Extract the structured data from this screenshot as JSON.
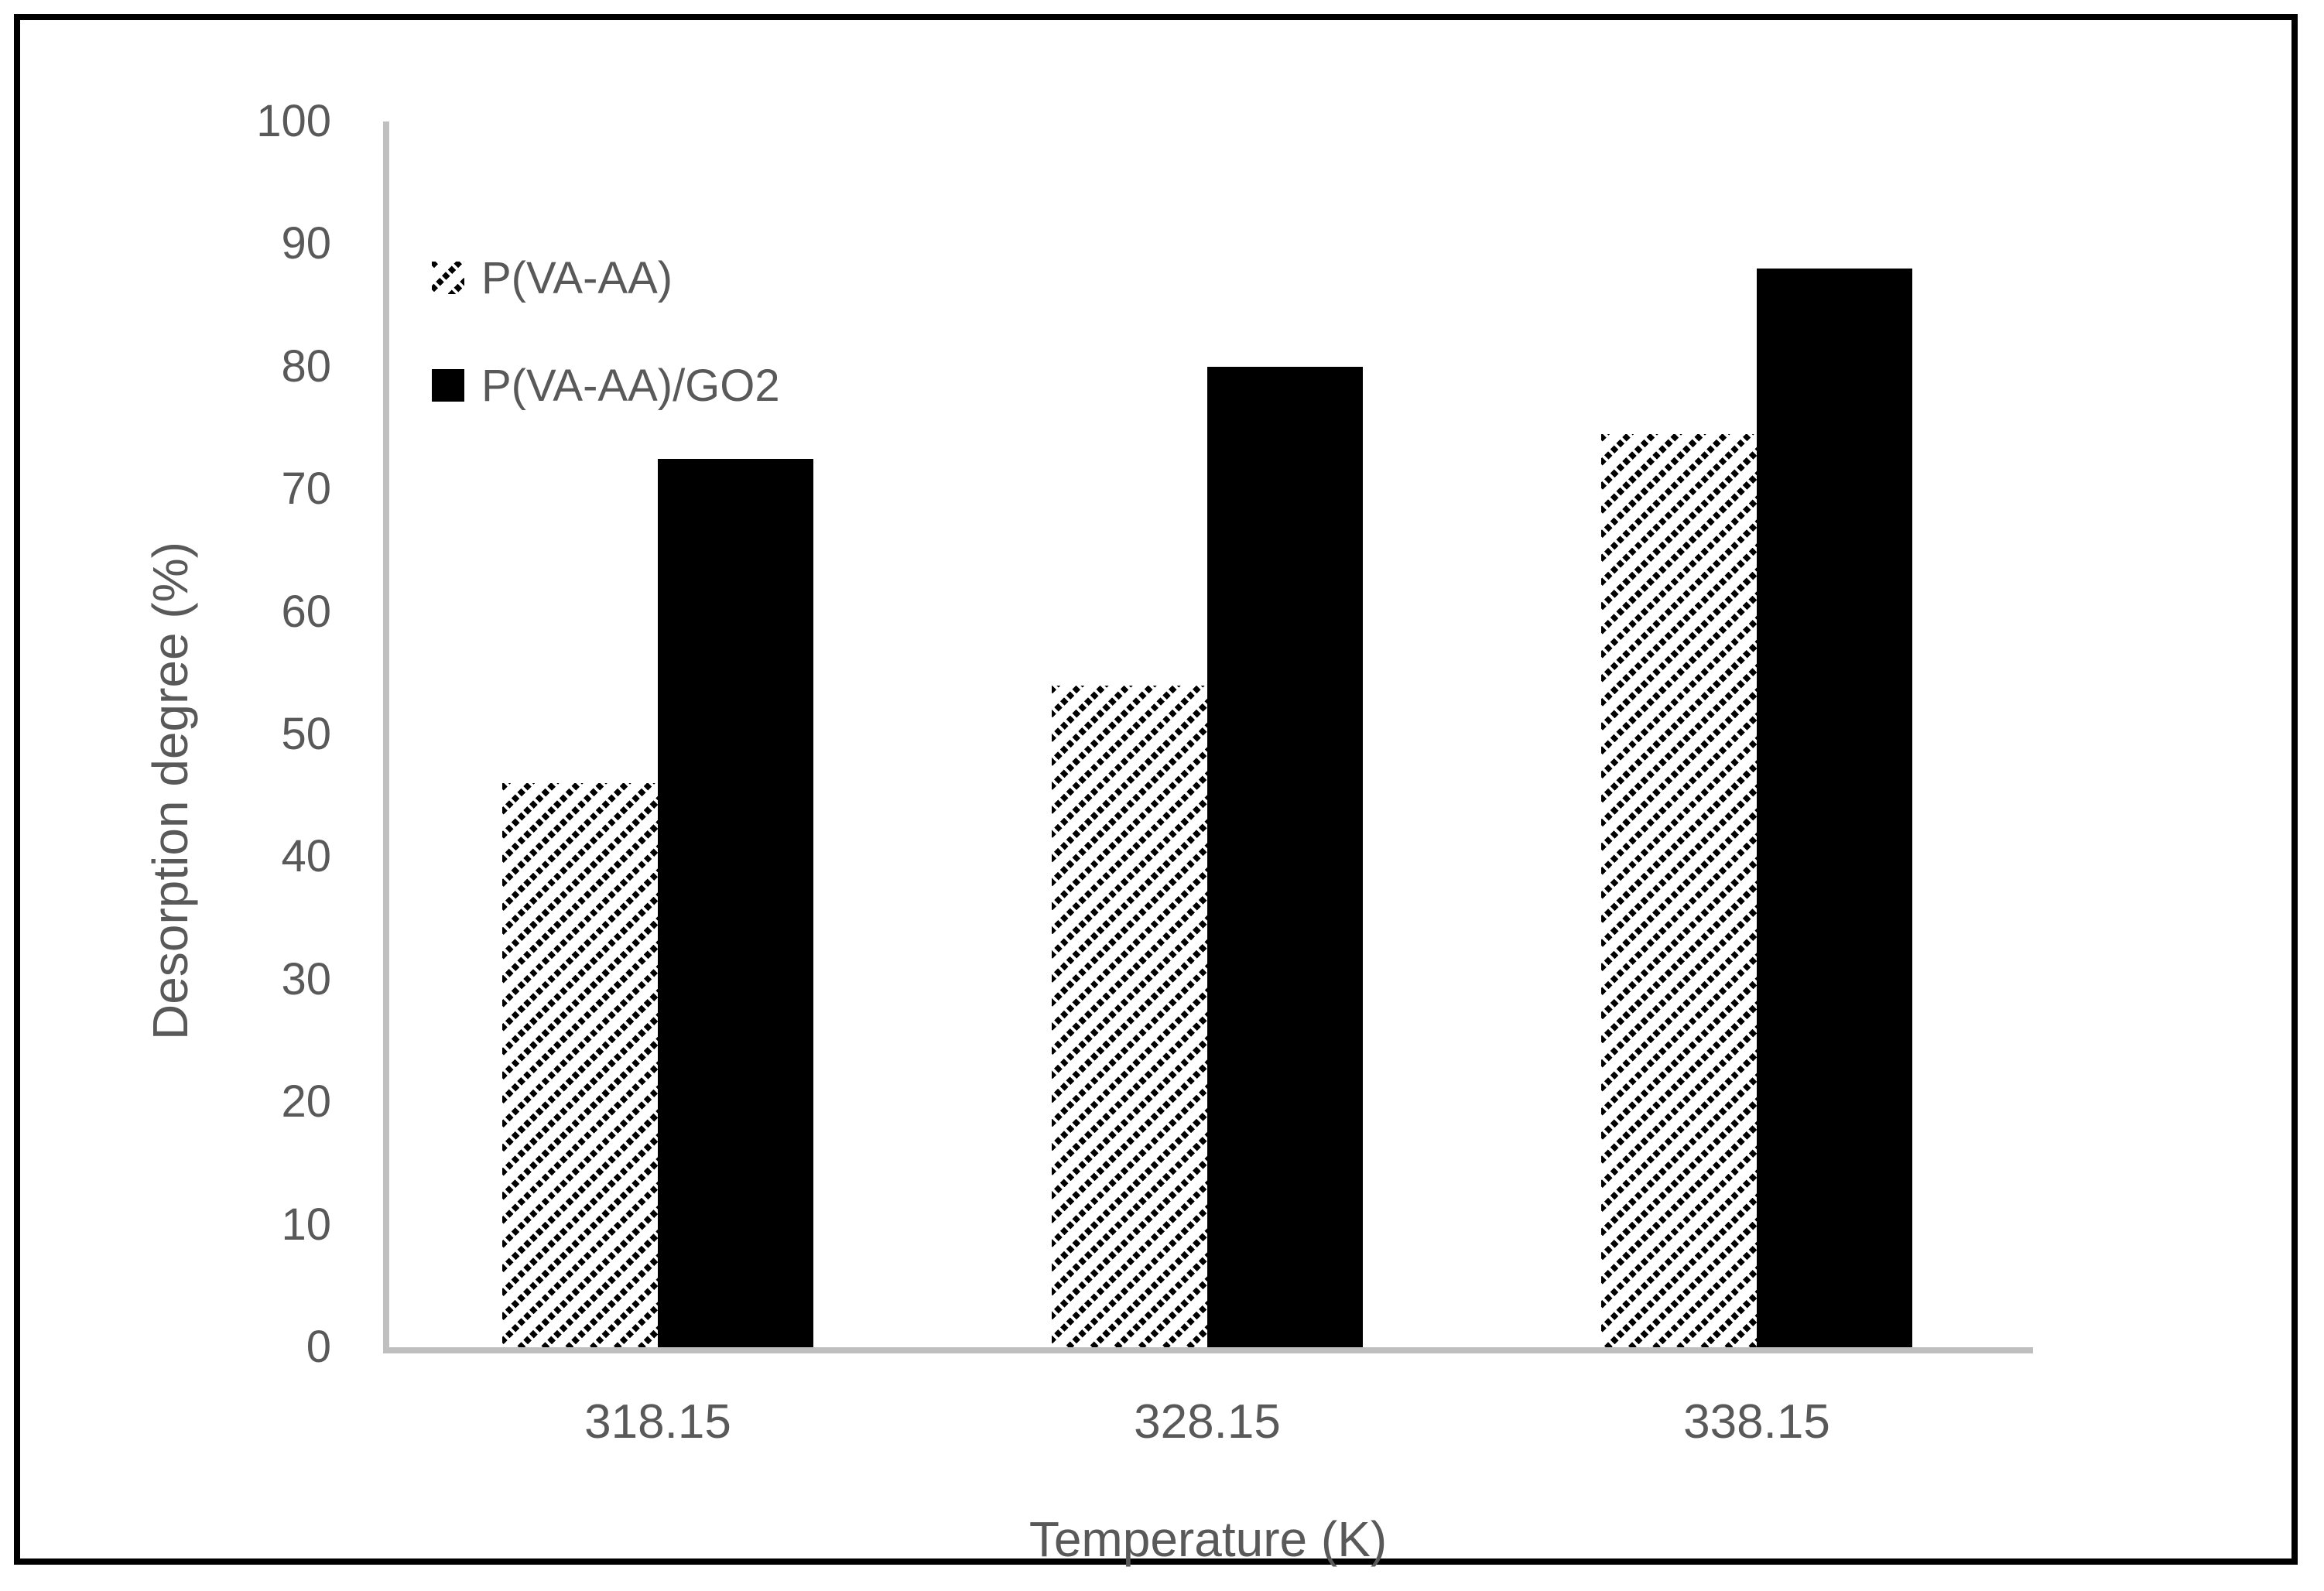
{
  "chart_data": {
    "type": "bar",
    "title": "",
    "categories": [
      "318.15",
      "328.15",
      "338.15"
    ],
    "series": [
      {
        "name": "P(VA-AA)",
        "style": "hatched",
        "values": [
          46,
          54,
          74.5
        ]
      },
      {
        "name": "P(VA-AA)/GO2",
        "style": "solid-black",
        "values": [
          72.5,
          80,
          88
        ]
      }
    ],
    "xlabel": "Temperature (K)",
    "ylabel": "Desorption degree (%)",
    "ylim": [
      0,
      100
    ],
    "ytick_step": 10,
    "yticks": [
      "0",
      "10",
      "20",
      "30",
      "40",
      "50",
      "60",
      "70",
      "80",
      "90",
      "100"
    ],
    "grid": false,
    "legend_position": "upper-left-inside"
  },
  "colors": {
    "text": "#595959",
    "axis_line": "#bfbfbf",
    "bar_solid": "#000000",
    "bar_hatch": "#000000",
    "frame": "#000000",
    "background": "#ffffff"
  }
}
